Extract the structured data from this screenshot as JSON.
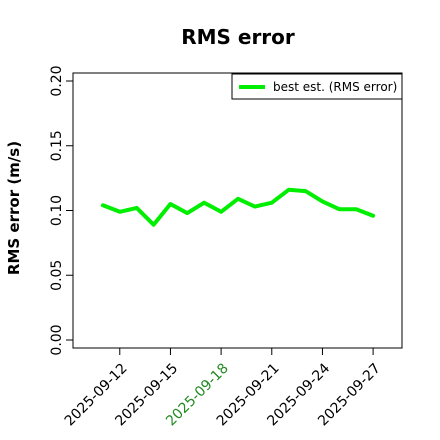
{
  "colors": {
    "series": "#00ee00",
    "highlight_tick": "#228b22",
    "axis": "#000000",
    "background": "#ffffff"
  },
  "chart_data": {
    "type": "line",
    "title": "RMS error",
    "xlabel": "",
    "ylabel": "RMS error (m/s)",
    "ylim": [
      0.0,
      0.2
    ],
    "yticks": [
      "0.00",
      "0.05",
      "0.10",
      "0.15",
      "0.20"
    ],
    "ytick_values": [
      0.0,
      0.05,
      0.1,
      0.15,
      0.2
    ],
    "xlim": [
      "2025-09-10",
      "2025-09-28"
    ],
    "xticks": [
      "2025-09-12",
      "2025-09-15",
      "2025-09-18",
      "2025-09-21",
      "2025-09-24",
      "2025-09-27"
    ],
    "highlighted_xtick": "2025-09-18",
    "grid": false,
    "legend_position": "top-right",
    "series": [
      {
        "name": "best est. (RMS error)",
        "x": [
          "2025-09-11",
          "2025-09-12",
          "2025-09-13",
          "2025-09-14",
          "2025-09-15",
          "2025-09-16",
          "2025-09-17",
          "2025-09-18",
          "2025-09-19",
          "2025-09-20",
          "2025-09-21",
          "2025-09-22",
          "2025-09-23",
          "2025-09-24",
          "2025-09-25",
          "2025-09-26",
          "2025-09-27"
        ],
        "values": [
          0.104,
          0.099,
          0.102,
          0.089,
          0.105,
          0.098,
          0.106,
          0.099,
          0.109,
          0.103,
          0.106,
          0.116,
          0.115,
          0.107,
          0.101,
          0.101,
          0.096
        ]
      }
    ]
  }
}
